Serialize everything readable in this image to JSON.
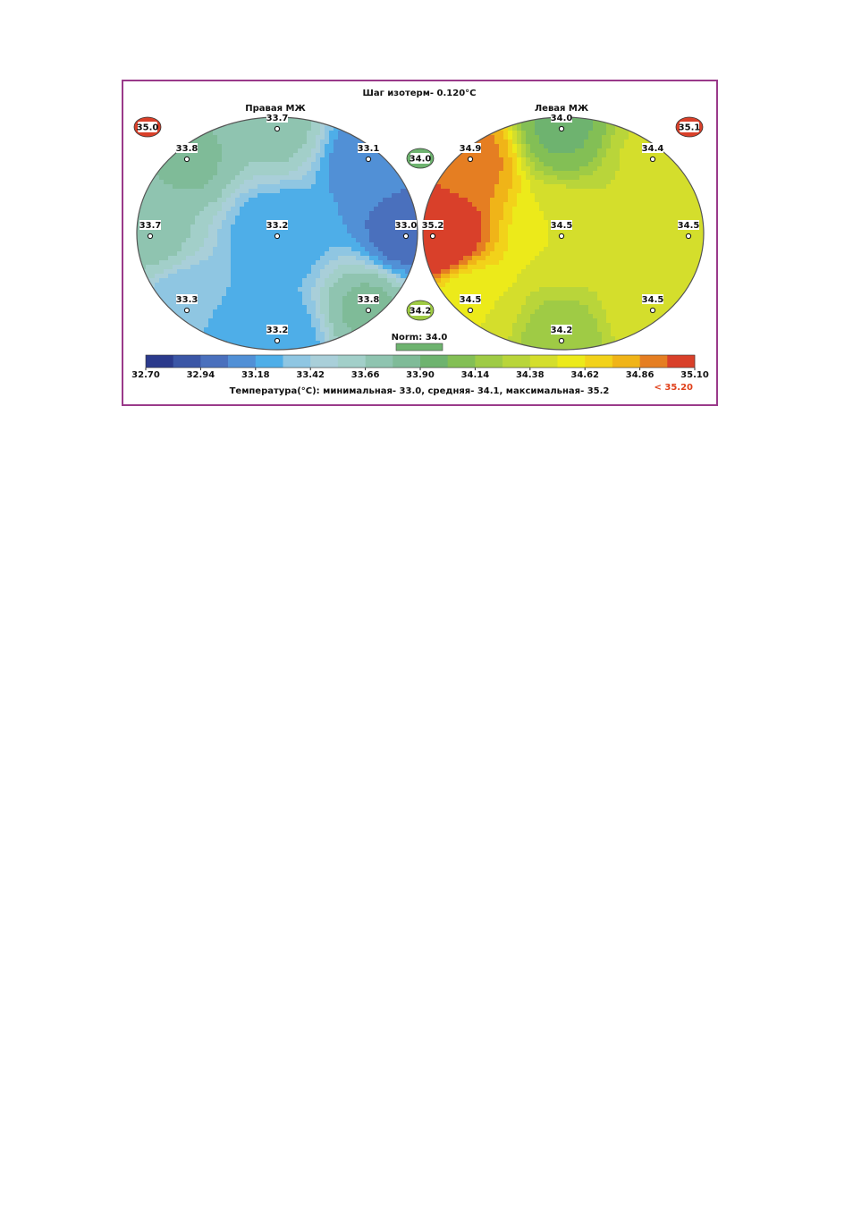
{
  "figure": {
    "title": "Шаг изотерм- 0.120°C",
    "right_breast": {
      "label": "Правая МЖ",
      "points": [
        33.7,
        33.8,
        33.1,
        33.7,
        33.2,
        {
          "value": 33,
          "label": "33.0"
        },
        33.3,
        33.8,
        33.2
      ]
    },
    "left_breast": {
      "label": "Левая МЖ",
      "points": [
        {
          "value": 34,
          "label": "34.0"
        },
        34.9,
        34.4,
        35.2,
        34.5,
        34.5,
        34.5,
        34.5,
        34.2
      ]
    },
    "badges": [
      {
        "value": 35,
        "label": "35.0"
      },
      35.1,
      {
        "value": 34,
        "label": "34.0"
      },
      34.2
    ],
    "norm": "Norm: 34.0",
    "scale": {
      "ticks": [
        {
          "value": 32.7,
          "label": "32.70"
        },
        32.94,
        33.18,
        33.42,
        33.66,
        {
          "value": 33.9,
          "label": "33.90"
        },
        34.14,
        34.38,
        34.62,
        34.86,
        {
          "value": 35.1,
          "label": "35.10"
        }
      ],
      "max_label": "< 35.20",
      "colors": [
        "#2b3a8c",
        "#3b56a6",
        "#4a70bd",
        "#5190d6",
        "#4eaee8",
        "#8fc6e2",
        "#a9cfd9",
        "#a2cfc9",
        "#8fc4b0",
        "#7fbb98",
        "#6eb36f",
        "#83bf55",
        "#9fcb45",
        "#b9d53a",
        "#d4de2c",
        "#ecea1a",
        "#f2d21a",
        "#f0b418",
        "#e57e22",
        "#d9402a"
      ]
    },
    "footer": "Температура(°С): минимальная- 33.0, средняя- 34.1, максимальная- 35.2"
  }
}
